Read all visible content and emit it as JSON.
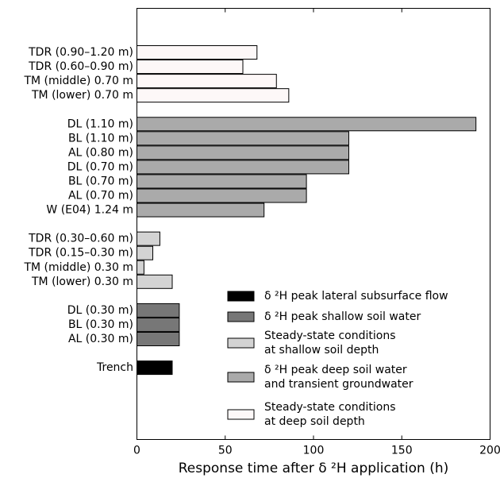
{
  "chart_data": {
    "type": "barh",
    "xlabel": "Response time after δ ²H application (h)",
    "xlim": [
      0,
      200
    ],
    "xticks": [
      0,
      50,
      100,
      150,
      200
    ],
    "categories": [
      "TDR (0.90–1.20 m)",
      "TDR (0.60–0.90 m)",
      "TM (middle) 0.70 m",
      "TM (lower) 0.70 m",
      null,
      "DL (1.10 m)",
      "BL (1.10 m)",
      "AL (0.80 m)",
      "DL (0.70 m)",
      "BL (0.70 m)",
      "AL (0.70 m)",
      "W (E04) 1.24 m",
      null,
      "TDR (0.30–0.60 m)",
      "TDR (0.15–0.30 m)",
      "TM (middle) 0.30 m",
      "TM (lower) 0.30 m",
      null,
      "DL (0.30 m)",
      "BL (0.30 m)",
      "AL (0.30 m)",
      null,
      "Trench"
    ],
    "series": [
      {
        "name": "δ ²H peak lateral subsurface flow",
        "color": "#000000",
        "values": [
          null,
          null,
          null,
          null,
          null,
          null,
          null,
          null,
          null,
          null,
          null,
          null,
          null,
          null,
          null,
          null,
          null,
          null,
          null,
          null,
          null,
          null,
          20
        ]
      },
      {
        "name": "δ ²H peak shallow soil water",
        "color": "#777777",
        "values": [
          null,
          null,
          null,
          null,
          null,
          null,
          null,
          null,
          null,
          null,
          null,
          null,
          null,
          null,
          null,
          null,
          null,
          null,
          24,
          24,
          24,
          null,
          null
        ]
      },
      {
        "name": "Steady-state conditions\nat shallow soil depth",
        "color": "#d3d3d3",
        "values": [
          null,
          null,
          null,
          null,
          null,
          null,
          null,
          null,
          null,
          null,
          null,
          null,
          null,
          13,
          9,
          4,
          20,
          null,
          null,
          null,
          null,
          null,
          null
        ]
      },
      {
        "name": "δ ²H peak deep soil water\nand transient groundwater",
        "color": "#aaaaaa",
        "values": [
          null,
          null,
          null,
          null,
          null,
          192,
          120,
          120,
          120,
          96,
          96,
          72,
          null,
          null,
          null,
          null,
          null,
          null,
          null,
          null,
          null,
          null,
          null
        ]
      },
      {
        "name": "Steady-state conditions\nat deep soil depth",
        "color": "#fdf8f8",
        "values": [
          68,
          60,
          79,
          86,
          null,
          null,
          null,
          null,
          null,
          null,
          null,
          null,
          null,
          null,
          null,
          null,
          null,
          null,
          null,
          null,
          null,
          null,
          null
        ]
      }
    ]
  }
}
